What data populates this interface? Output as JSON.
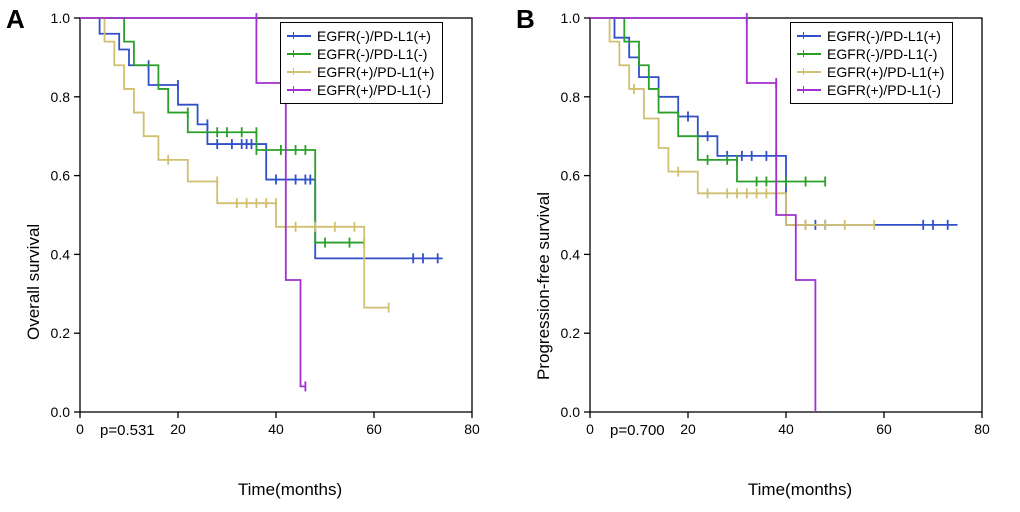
{
  "figure": {
    "background_color": "#ffffff",
    "axis_color": "#000000",
    "tick_fontsize": 14,
    "axis_title_fontsize": 17,
    "panel_label_fontsize": 26,
    "line_width": 1.8,
    "panels": [
      "A",
      "B"
    ]
  },
  "series_colors": {
    "s1": "#3050c8",
    "s2": "#2aa02a",
    "s3": "#d0c070",
    "s4": "#a030d0"
  },
  "legend_labels": {
    "s1": "EGFR(-)/PD-L1(+)",
    "s2": "EGFR(-)/PD-L1(-)",
    "s3": "EGFR(+)/PD-L1(+)",
    "s4": "EGFR(+)/PD-L1(-)"
  },
  "panelA": {
    "label": "A",
    "ylabel": "Overall survival",
    "xlabel": "Time(months)",
    "pvalue": "p=0.531",
    "xlim": [
      0,
      80
    ],
    "ylim": [
      0.0,
      1.0
    ],
    "xticks": [
      0,
      20,
      40,
      60,
      80
    ],
    "yticks": [
      0.0,
      0.2,
      0.4,
      0.6,
      0.8,
      1.0
    ],
    "series": {
      "s1": {
        "points": [
          [
            0,
            1.0
          ],
          [
            4,
            1.0
          ],
          [
            4,
            0.96
          ],
          [
            8,
            0.96
          ],
          [
            8,
            0.92
          ],
          [
            10,
            0.92
          ],
          [
            10,
            0.88
          ],
          [
            14,
            0.88
          ],
          [
            14,
            0.83
          ],
          [
            20,
            0.83
          ],
          [
            20,
            0.78
          ],
          [
            24,
            0.78
          ],
          [
            24,
            0.73
          ],
          [
            26,
            0.73
          ],
          [
            26,
            0.68
          ],
          [
            32,
            0.68
          ],
          [
            38,
            0.68
          ],
          [
            38,
            0.59
          ],
          [
            46,
            0.59
          ],
          [
            48,
            0.59
          ],
          [
            48,
            0.39
          ],
          [
            68,
            0.39
          ],
          [
            74,
            0.39
          ]
        ],
        "censors": [
          [
            14,
            0.88
          ],
          [
            20,
            0.83
          ],
          [
            26,
            0.73
          ],
          [
            28,
            0.68
          ],
          [
            31,
            0.68
          ],
          [
            33,
            0.68
          ],
          [
            34,
            0.68
          ],
          [
            35,
            0.68
          ],
          [
            40,
            0.59
          ],
          [
            44,
            0.59
          ],
          [
            46,
            0.59
          ],
          [
            47,
            0.59
          ],
          [
            68,
            0.39
          ],
          [
            70,
            0.39
          ],
          [
            73,
            0.39
          ]
        ]
      },
      "s2": {
        "points": [
          [
            0,
            1.0
          ],
          [
            9,
            1.0
          ],
          [
            9,
            0.94
          ],
          [
            11,
            0.94
          ],
          [
            11,
            0.88
          ],
          [
            16,
            0.88
          ],
          [
            16,
            0.82
          ],
          [
            18,
            0.82
          ],
          [
            18,
            0.76
          ],
          [
            22,
            0.76
          ],
          [
            22,
            0.71
          ],
          [
            36,
            0.71
          ],
          [
            36,
            0.665
          ],
          [
            41,
            0.665
          ],
          [
            48,
            0.665
          ],
          [
            48,
            0.43
          ],
          [
            58,
            0.43
          ]
        ],
        "censors": [
          [
            22,
            0.76
          ],
          [
            28,
            0.71
          ],
          [
            30,
            0.71
          ],
          [
            33,
            0.71
          ],
          [
            36,
            0.71
          ],
          [
            36,
            0.665
          ],
          [
            41,
            0.665
          ],
          [
            44,
            0.665
          ],
          [
            46,
            0.665
          ],
          [
            50,
            0.43
          ],
          [
            55,
            0.43
          ],
          [
            58,
            0.43
          ]
        ]
      },
      "s3": {
        "points": [
          [
            0,
            1.0
          ],
          [
            5,
            1.0
          ],
          [
            5,
            0.94
          ],
          [
            7,
            0.94
          ],
          [
            7,
            0.88
          ],
          [
            9,
            0.88
          ],
          [
            9,
            0.82
          ],
          [
            11,
            0.82
          ],
          [
            11,
            0.76
          ],
          [
            13,
            0.76
          ],
          [
            13,
            0.7
          ],
          [
            16,
            0.7
          ],
          [
            16,
            0.64
          ],
          [
            22,
            0.64
          ],
          [
            22,
            0.585
          ],
          [
            28,
            0.585
          ],
          [
            28,
            0.53
          ],
          [
            40,
            0.53
          ],
          [
            40,
            0.47
          ],
          [
            50,
            0.47
          ],
          [
            58,
            0.47
          ],
          [
            58,
            0.265
          ],
          [
            63,
            0.265
          ]
        ],
        "censors": [
          [
            18,
            0.64
          ],
          [
            28,
            0.585
          ],
          [
            32,
            0.53
          ],
          [
            34,
            0.53
          ],
          [
            36,
            0.53
          ],
          [
            38,
            0.53
          ],
          [
            40,
            0.53
          ],
          [
            44,
            0.47
          ],
          [
            48,
            0.47
          ],
          [
            52,
            0.47
          ],
          [
            56,
            0.47
          ],
          [
            63,
            0.265
          ]
        ]
      },
      "s4": {
        "points": [
          [
            0,
            1.0
          ],
          [
            36,
            1.0
          ],
          [
            36,
            0.835
          ],
          [
            42,
            0.835
          ],
          [
            42,
            0.335
          ],
          [
            45,
            0.335
          ],
          [
            45,
            0.065
          ],
          [
            46,
            0.065
          ]
        ],
        "censors": [
          [
            36,
            1.0
          ],
          [
            42,
            0.835
          ],
          [
            46,
            0.065
          ]
        ]
      }
    }
  },
  "panelB": {
    "label": "B",
    "ylabel": "Progression-free survival",
    "xlabel": "Time(months)",
    "pvalue": "p=0.700",
    "xlim": [
      0,
      80
    ],
    "ylim": [
      0.0,
      1.0
    ],
    "xticks": [
      0,
      20,
      40,
      60,
      80
    ],
    "yticks": [
      0.0,
      0.2,
      0.4,
      0.6,
      0.8,
      1.0
    ],
    "series": {
      "s1": {
        "points": [
          [
            0,
            1.0
          ],
          [
            5,
            1.0
          ],
          [
            5,
            0.95
          ],
          [
            8,
            0.95
          ],
          [
            8,
            0.9
          ],
          [
            10,
            0.9
          ],
          [
            10,
            0.85
          ],
          [
            14,
            0.85
          ],
          [
            14,
            0.8
          ],
          [
            18,
            0.8
          ],
          [
            18,
            0.75
          ],
          [
            22,
            0.75
          ],
          [
            22,
            0.7
          ],
          [
            26,
            0.7
          ],
          [
            26,
            0.65
          ],
          [
            32,
            0.65
          ],
          [
            40,
            0.65
          ],
          [
            40,
            0.475
          ],
          [
            68,
            0.475
          ],
          [
            75,
            0.475
          ]
        ],
        "censors": [
          [
            20,
            0.75
          ],
          [
            24,
            0.7
          ],
          [
            28,
            0.65
          ],
          [
            31,
            0.65
          ],
          [
            33,
            0.65
          ],
          [
            36,
            0.65
          ],
          [
            38,
            0.65
          ],
          [
            44,
            0.475
          ],
          [
            46,
            0.475
          ],
          [
            48,
            0.475
          ],
          [
            68,
            0.475
          ],
          [
            70,
            0.475
          ],
          [
            73,
            0.475
          ]
        ]
      },
      "s2": {
        "points": [
          [
            0,
            1.0
          ],
          [
            7,
            1.0
          ],
          [
            7,
            0.94
          ],
          [
            10,
            0.94
          ],
          [
            10,
            0.88
          ],
          [
            12,
            0.88
          ],
          [
            12,
            0.82
          ],
          [
            14,
            0.82
          ],
          [
            14,
            0.76
          ],
          [
            18,
            0.76
          ],
          [
            18,
            0.7
          ],
          [
            22,
            0.7
          ],
          [
            22,
            0.64
          ],
          [
            30,
            0.64
          ],
          [
            30,
            0.585
          ],
          [
            48,
            0.585
          ]
        ],
        "censors": [
          [
            24,
            0.64
          ],
          [
            28,
            0.64
          ],
          [
            30,
            0.64
          ],
          [
            34,
            0.585
          ],
          [
            36,
            0.585
          ],
          [
            40,
            0.585
          ],
          [
            44,
            0.585
          ],
          [
            48,
            0.585
          ]
        ]
      },
      "s3": {
        "points": [
          [
            0,
            1.0
          ],
          [
            4,
            1.0
          ],
          [
            4,
            0.94
          ],
          [
            6,
            0.94
          ],
          [
            6,
            0.88
          ],
          [
            8,
            0.88
          ],
          [
            8,
            0.82
          ],
          [
            11,
            0.82
          ],
          [
            11,
            0.745
          ],
          [
            14,
            0.745
          ],
          [
            14,
            0.67
          ],
          [
            16,
            0.67
          ],
          [
            16,
            0.61
          ],
          [
            22,
            0.61
          ],
          [
            22,
            0.555
          ],
          [
            40,
            0.555
          ],
          [
            40,
            0.475
          ],
          [
            58,
            0.475
          ]
        ],
        "censors": [
          [
            9,
            0.82
          ],
          [
            18,
            0.61
          ],
          [
            24,
            0.555
          ],
          [
            28,
            0.555
          ],
          [
            30,
            0.555
          ],
          [
            32,
            0.555
          ],
          [
            34,
            0.555
          ],
          [
            36,
            0.555
          ],
          [
            38,
            0.555
          ],
          [
            44,
            0.475
          ],
          [
            48,
            0.475
          ],
          [
            52,
            0.475
          ],
          [
            58,
            0.475
          ]
        ]
      },
      "s4": {
        "points": [
          [
            0,
            1.0
          ],
          [
            32,
            1.0
          ],
          [
            32,
            0.835
          ],
          [
            38,
            0.835
          ],
          [
            38,
            0.5
          ],
          [
            42,
            0.5
          ],
          [
            42,
            0.335
          ],
          [
            46,
            0.335
          ],
          [
            46,
            0.0
          ]
        ],
        "censors": [
          [
            32,
            1.0
          ],
          [
            38,
            0.835
          ]
        ]
      }
    }
  }
}
